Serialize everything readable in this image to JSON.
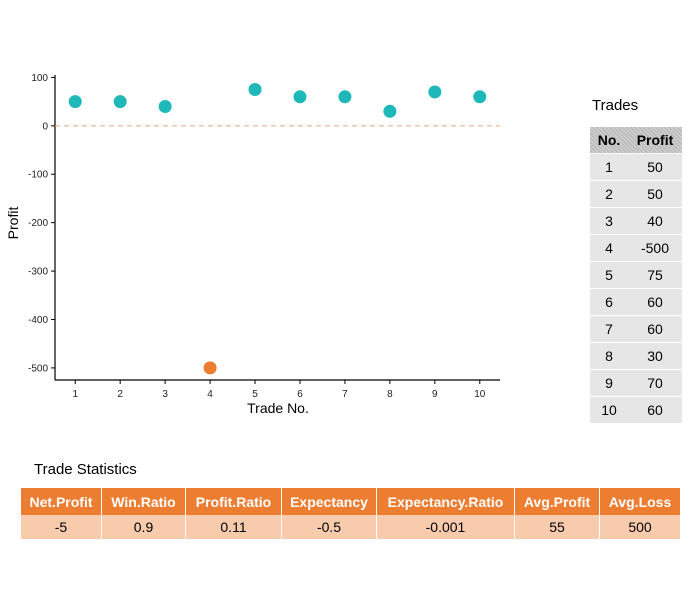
{
  "chart_data": {
    "type": "scatter",
    "title": "",
    "xlabel": "Trade No.",
    "ylabel": "Profit",
    "x": [
      1,
      2,
      3,
      4,
      5,
      6,
      7,
      8,
      9,
      10
    ],
    "y": [
      50,
      50,
      40,
      -500,
      75,
      60,
      60,
      30,
      70,
      60
    ],
    "xticks": [
      "1",
      "2",
      "3",
      "4",
      "5",
      "6",
      "7",
      "8",
      "9",
      "10"
    ],
    "yticks": [
      "100",
      "0",
      "-100",
      "-200",
      "-300",
      "-400",
      "-500"
    ],
    "ylim": [
      -525,
      105
    ],
    "xlim": [
      0.55,
      10.45
    ],
    "reference_line": {
      "y": 0,
      "style": "dashed",
      "color": "#e8a57a"
    },
    "point_colors": {
      "positive": "#1fb8b8",
      "negative": "#ec7d31"
    },
    "grid": false
  },
  "trades": {
    "title": "Trades",
    "headers": [
      "No.",
      "Profit"
    ],
    "rows": [
      [
        "1",
        "50"
      ],
      [
        "2",
        "50"
      ],
      [
        "3",
        "40"
      ],
      [
        "4",
        "-500"
      ],
      [
        "5",
        "75"
      ],
      [
        "6",
        "60"
      ],
      [
        "7",
        "60"
      ],
      [
        "8",
        "30"
      ],
      [
        "9",
        "70"
      ],
      [
        "10",
        "60"
      ]
    ]
  },
  "stats": {
    "title": "Trade Statistics",
    "headers": [
      "Net.Profit",
      "Win.Ratio",
      "Profit.Ratio",
      "Expectancy",
      "Expectancy.Ratio",
      "Avg.Profit",
      "Avg.Loss"
    ],
    "values": [
      "-5",
      "0.9",
      "0.11",
      "-0.5",
      "-0.001",
      "55",
      "500"
    ]
  }
}
